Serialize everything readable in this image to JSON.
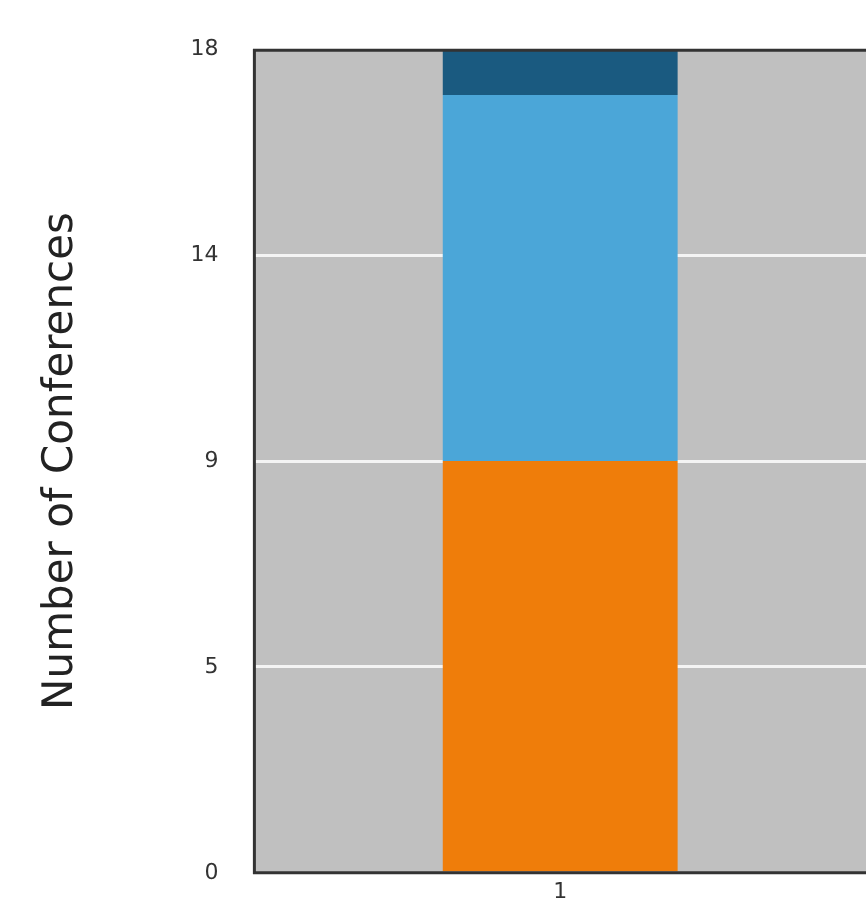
{
  "chart_data": {
    "type": "bar",
    "ylabel": "Number of Conferences",
    "categories": [
      "1"
    ],
    "stacked": true,
    "series": [
      {
        "color": "#ef7d0a",
        "values": [
          9
        ]
      },
      {
        "color": "#4ba6d8",
        "values": [
          8
        ]
      },
      {
        "color": "#1a5a80",
        "values": [
          1
        ]
      }
    ],
    "ylim": [
      0,
      18
    ],
    "yticks": [
      0,
      {
        "value": 4.5,
        "label": "5"
      },
      9,
      {
        "value": 13.5,
        "label": "14"
      },
      18
    ],
    "grid": "y",
    "legend": false
  }
}
